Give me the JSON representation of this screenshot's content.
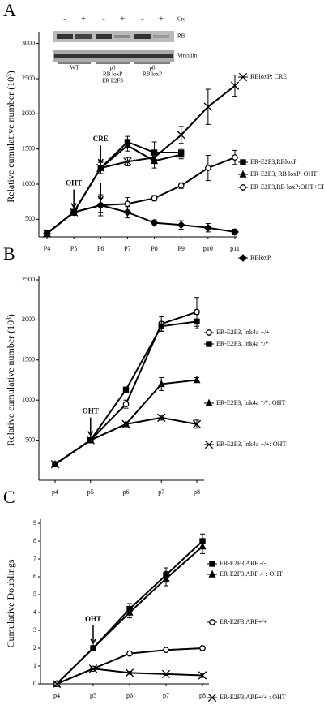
{
  "chart_data": [
    {
      "type": "line",
      "panel": "A",
      "ylabel": "Relative cumulative number (10³)",
      "categories": [
        "P4",
        "P5",
        "P6",
        "P7",
        "P8",
        "P9",
        "p10",
        "p11"
      ],
      "ylim": [
        250,
        3100
      ],
      "yticks": [
        500,
        1000,
        1500,
        2000,
        2500,
        3000
      ],
      "annotations": [
        "OHT",
        "CRE"
      ],
      "series": [
        {
          "name": "RBloxP: CRE",
          "color": "#000000",
          "marker": "x",
          "values": [
            300,
            600,
            1230,
            1320,
            1380,
            1700,
            2100,
            2400
          ],
          "errors": [
            30,
            40,
            80,
            60,
            70,
            120,
            250,
            150
          ]
        },
        {
          "name": "ER-E2F3,RBloxP",
          "color": "#000000",
          "marker": "square",
          "values": [
            300,
            600,
            1230,
            1600,
            1450,
            1450,
            null,
            null
          ],
          "errors": [
            30,
            40,
            80,
            80,
            150,
            60,
            null,
            null
          ]
        },
        {
          "name": "ER-E2F3, RB loxP: OHT",
          "color": "#000000",
          "marker": "triangle",
          "values": [
            300,
            600,
            1230,
            1550,
            1330,
            1420,
            null,
            null
          ],
          "errors": [
            30,
            40,
            80,
            80,
            100,
            60,
            null,
            null
          ]
        },
        {
          "name": "ER-E2F3,RB loxP:OHT+CRE",
          "color": "#000000",
          "marker": "circle",
          "values": [
            300,
            600,
            700,
            720,
            800,
            980,
            1230,
            1380
          ],
          "errors": [
            30,
            40,
            150,
            90,
            40,
            40,
            180,
            100
          ]
        },
        {
          "name": "RBloxP",
          "color": "#000000",
          "marker": "diamond",
          "values": [
            300,
            600,
            700,
            600,
            450,
            420,
            380,
            320
          ],
          "errors": [
            30,
            40,
            100,
            80,
            40,
            60,
            60,
            40
          ]
        }
      ],
      "inset": {
        "signs": [
          "-",
          "+",
          "-",
          "+",
          "-",
          "+"
        ],
        "row_labels": [
          "Cre",
          "RB",
          "Vinculin"
        ],
        "groups": [
          "WT",
          "p8",
          "RB loxP",
          "ER E2F3",
          "p8",
          "RB loxP"
        ]
      }
    },
    {
      "type": "line",
      "panel": "B",
      "ylabel": "Relative cumulative number (10³)",
      "categories": [
        "p4",
        "p5",
        "p6",
        "p7",
        "p8"
      ],
      "ylim": [
        0,
        2500
      ],
      "yticks": [
        500,
        1000,
        1500,
        2000,
        2500
      ],
      "annotations": [
        "OHT"
      ],
      "series": [
        {
          "name": "ER-E2F3, Ink4a +/+",
          "color": "#000000",
          "marker": "circle",
          "values": [
            200,
            500,
            950,
            1950,
            2100
          ],
          "errors": [
            10,
            20,
            50,
            90,
            180
          ]
        },
        {
          "name": "ER-E2F3, Ink4a */*",
          "color": "#000000",
          "marker": "square",
          "values": [
            200,
            500,
            1130,
            1920,
            1980
          ],
          "errors": [
            10,
            20,
            30,
            60,
            90
          ]
        },
        {
          "name": "ER-E2F3, Ink4a */*: OHT",
          "color": "#000000",
          "marker": "triangle",
          "values": [
            200,
            500,
            700,
            1200,
            1250
          ],
          "errors": [
            10,
            20,
            20,
            80,
            30
          ]
        },
        {
          "name": "ER-E2F3, Ink4a +/+: OHT",
          "color": "#000000",
          "marker": "x",
          "values": [
            200,
            500,
            700,
            780,
            700
          ],
          "errors": [
            10,
            20,
            20,
            30,
            50
          ]
        }
      ]
    },
    {
      "type": "line",
      "panel": "C",
      "ylabel": "Cumulative Doublings",
      "categories": [
        "p4",
        "p5",
        "p6",
        "p7",
        "p8"
      ],
      "ylim": [
        0,
        9
      ],
      "yticks": [
        0,
        1,
        2,
        3,
        4,
        5,
        6,
        7,
        8,
        9
      ],
      "annotations": [
        "OHT"
      ],
      "series": [
        {
          "name": "ER-E2F3,ARF -/-",
          "color": "#000000",
          "marker": "square",
          "values": [
            0,
            2,
            4.2,
            6.1,
            8.0
          ],
          "errors": [
            0,
            0.05,
            0.3,
            0.4,
            0.4
          ]
        },
        {
          "name": "ER-E2F3,ARF-/- : OHT",
          "color": "#000000",
          "marker": "triangle",
          "values": [
            0,
            2,
            4.0,
            5.9,
            7.7
          ],
          "errors": [
            0,
            0.05,
            0.3,
            0.4,
            0.4
          ]
        },
        {
          "name": "ER-E2F3,ARF+/+",
          "color": "#000000",
          "marker": "circle",
          "values": [
            0,
            0.85,
            1.7,
            1.9,
            2.0
          ],
          "errors": [
            0,
            0.05,
            0.07,
            0.1,
            0.1
          ]
        },
        {
          "name": "ER-E2F3,ARF+/+ : OHT",
          "color": "#000000",
          "marker": "x",
          "values": [
            0,
            0.85,
            0.62,
            0.55,
            0.48
          ],
          "errors": [
            0,
            0.05,
            0.08,
            0.07,
            0.12
          ]
        }
      ]
    }
  ]
}
